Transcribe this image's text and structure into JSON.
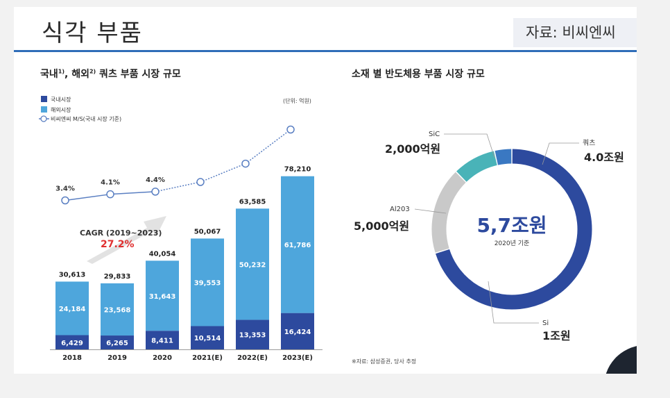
{
  "page": {
    "title": "식각 부품",
    "source": "자료: 비씨엔씨"
  },
  "left_chart_title": {
    "domestic_word": "국내",
    "domestic_sup": "1)",
    "overseas_word": ", 해외",
    "overseas_sup": "2)",
    "rest": " 쿼츠 부품 시장 규모"
  },
  "right_chart_title": "소재 별 반도체용 부품 시장 규모",
  "unit_note": "(단위: 억원)",
  "footnote": "※자료: 삼성증권, 당사 추정",
  "cagr": {
    "label": "CAGR (2019~2023)",
    "value": "27.2%"
  },
  "colors": {
    "domestic": "#2d4a9e",
    "overseas": "#4ea6dc",
    "market_share_line": "#5a7fc2",
    "cagr_value": "#e03030",
    "quartz": "#2d4a9e",
    "si": "#c9c9c9",
    "al2o3": "#49b3b8",
    "sic": "#3a78c2"
  },
  "chart_data": [
    {
      "type": "bar",
      "stacked": true,
      "categories": [
        "2018",
        "2019",
        "2020",
        "2021(E)",
        "2022(E)",
        "2023(E)"
      ],
      "series": [
        {
          "name": "국내시장",
          "values": [
            6429,
            6265,
            8411,
            10514,
            13353,
            16424
          ],
          "labels": [
            "6,429",
            "6,265",
            "8,411",
            "10,514",
            "13,353",
            "16,424"
          ]
        },
        {
          "name": "해외시장",
          "values": [
            24184,
            23568,
            31643,
            39553,
            50232,
            61786
          ],
          "labels": [
            "24,184",
            "23,568",
            "31,643",
            "39,553",
            "50,232",
            "61,786"
          ]
        }
      ],
      "totals": [
        30613,
        29833,
        40054,
        50067,
        63585,
        78210
      ],
      "total_labels": [
        "30,613",
        "29,833",
        "40,054",
        "50,067",
        "63,585",
        "78,210"
      ],
      "line_series": {
        "name": "비씨엔씨 M/S(국내 시장 기준)",
        "values_pct": [
          3.4,
          4.1,
          4.4,
          5.5,
          7.6,
          11.5
        ],
        "labels": [
          "3.4%",
          "4.1%",
          "4.4%",
          "",
          "",
          ""
        ]
      },
      "ylim": [
        0,
        80000
      ]
    },
    {
      "type": "pie",
      "donut": true,
      "center_value": "5,7조원",
      "center_note": "2020년 기준",
      "slices": [
        {
          "name": "쿼츠",
          "value": 4.0,
          "label": "4.0조원"
        },
        {
          "name": "Si",
          "value": 1.0,
          "label": "1조원"
        },
        {
          "name": "Al203",
          "value": 0.5,
          "label": "5,000억원"
        },
        {
          "name": "SiC",
          "value": 0.2,
          "label": "2,000억원"
        }
      ]
    }
  ]
}
